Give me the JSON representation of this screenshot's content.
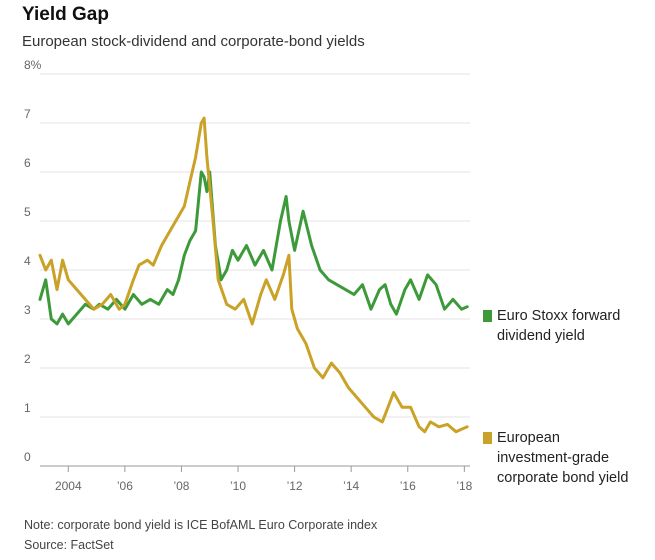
{
  "title": "Yield Gap",
  "subtitle": "European stock-dividend and corporate-bond yields",
  "note": "Note: corporate bond yield is ICE BofAML Euro Corporate index",
  "source": "Source: FactSet",
  "colors": {
    "green": "#3d9a3a",
    "gold": "#c9a227",
    "grid": "#e3e3e3",
    "axis": "#999999"
  },
  "chart_data": {
    "type": "line",
    "title": "Yield Gap",
    "subtitle": "European stock-dividend and corporate-bond yields",
    "xlabel": "",
    "ylabel": "",
    "xlim": [
      2003.0,
      2018.2
    ],
    "ylim": [
      0,
      8
    ],
    "grid": true,
    "legend_position": "right",
    "y_ticks": [
      0,
      1,
      2,
      3,
      4,
      5,
      6,
      7,
      8
    ],
    "y_tick_labels": [
      "0",
      "1",
      "2",
      "3",
      "4",
      "5",
      "6",
      "7",
      "8%"
    ],
    "x_ticks": [
      2004,
      2006,
      2008,
      2010,
      2012,
      2014,
      2016,
      2018
    ],
    "x_tick_labels": [
      "2004",
      "’06",
      "’08",
      "’10",
      "’12",
      "’14",
      "’16",
      "’18"
    ],
    "series": [
      {
        "name": "Euro Stoxx forward dividend yield",
        "color": "#3d9a3a",
        "x": [
          2003.0,
          2003.2,
          2003.4,
          2003.6,
          2003.8,
          2004.0,
          2004.3,
          2004.6,
          2004.9,
          2005.1,
          2005.4,
          2005.7,
          2006.0,
          2006.3,
          2006.6,
          2006.9,
          2007.2,
          2007.5,
          2007.7,
          2007.9,
          2008.1,
          2008.3,
          2008.5,
          2008.7,
          2008.8,
          2008.9,
          2009.0,
          2009.2,
          2009.4,
          2009.6,
          2009.8,
          2010.0,
          2010.3,
          2010.6,
          2010.9,
          2011.2,
          2011.5,
          2011.7,
          2011.8,
          2012.0,
          2012.3,
          2012.6,
          2012.9,
          2013.2,
          2013.5,
          2013.8,
          2014.1,
          2014.4,
          2014.7,
          2015.0,
          2015.2,
          2015.4,
          2015.6,
          2015.9,
          2016.1,
          2016.4,
          2016.7,
          2017.0,
          2017.3,
          2017.6,
          2017.9,
          2018.1
        ],
        "values": [
          3.4,
          3.8,
          3.0,
          2.9,
          3.1,
          2.9,
          3.1,
          3.3,
          3.2,
          3.3,
          3.2,
          3.4,
          3.2,
          3.5,
          3.3,
          3.4,
          3.3,
          3.6,
          3.5,
          3.8,
          4.3,
          4.6,
          4.8,
          6.0,
          5.9,
          5.6,
          6.0,
          4.5,
          3.8,
          4.0,
          4.4,
          4.2,
          4.5,
          4.1,
          4.4,
          4.0,
          5.0,
          5.5,
          5.0,
          4.4,
          5.2,
          4.5,
          4.0,
          3.8,
          3.7,
          3.6,
          3.5,
          3.7,
          3.2,
          3.6,
          3.7,
          3.3,
          3.1,
          3.6,
          3.8,
          3.4,
          3.9,
          3.7,
          3.2,
          3.4,
          3.2,
          3.25
        ]
      },
      {
        "name": "European investment-grade corporate bond yield",
        "color": "#c9a227",
        "x": [
          2003.0,
          2003.2,
          2003.4,
          2003.6,
          2003.8,
          2004.0,
          2004.3,
          2004.6,
          2004.9,
          2005.2,
          2005.5,
          2005.8,
          2006.0,
          2006.3,
          2006.5,
          2006.8,
          2007.0,
          2007.3,
          2007.6,
          2007.9,
          2008.1,
          2008.3,
          2008.5,
          2008.7,
          2008.8,
          2008.9,
          2009.1,
          2009.3,
          2009.6,
          2009.9,
          2010.2,
          2010.5,
          2010.8,
          2011.0,
          2011.3,
          2011.6,
          2011.8,
          2011.9,
          2012.1,
          2012.4,
          2012.7,
          2013.0,
          2013.3,
          2013.6,
          2013.9,
          2014.2,
          2014.5,
          2014.8,
          2015.1,
          2015.3,
          2015.5,
          2015.8,
          2016.1,
          2016.4,
          2016.6,
          2016.8,
          2017.1,
          2017.4,
          2017.7,
          2017.9,
          2018.1
        ],
        "values": [
          4.3,
          4.0,
          4.2,
          3.6,
          4.2,
          3.8,
          3.6,
          3.4,
          3.2,
          3.3,
          3.5,
          3.2,
          3.3,
          3.8,
          4.1,
          4.2,
          4.1,
          4.5,
          4.8,
          5.1,
          5.3,
          5.8,
          6.3,
          7.0,
          7.1,
          6.3,
          5.1,
          3.8,
          3.3,
          3.2,
          3.4,
          2.9,
          3.5,
          3.8,
          3.4,
          3.9,
          4.3,
          3.2,
          2.8,
          2.5,
          2.0,
          1.8,
          2.1,
          1.9,
          1.6,
          1.4,
          1.2,
          1.0,
          0.9,
          1.2,
          1.5,
          1.2,
          1.2,
          0.8,
          0.7,
          0.9,
          0.8,
          0.85,
          0.7,
          0.75,
          0.8
        ]
      }
    ]
  },
  "legend": [
    {
      "color": "#3d9a3a",
      "label": "Euro Stoxx forward dividend yield"
    },
    {
      "color": "#c9a227",
      "label": "European investment-grade corporate bond yield"
    }
  ]
}
